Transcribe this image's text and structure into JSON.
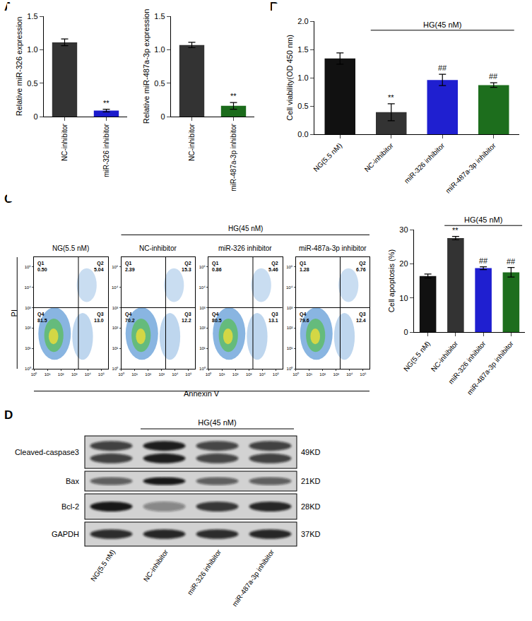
{
  "panel_labels": [
    "A",
    "B",
    "C",
    "D"
  ],
  "chart_data": [
    {
      "type": "bar",
      "categories": [
        "NC-inhibitor",
        "miR-326 inhibitor"
      ],
      "values": [
        1.11,
        0.09
      ],
      "errors": [
        0.05,
        0.02
      ],
      "colors": [
        "#333333",
        "#1a1acc"
      ],
      "ylabel": "Relative miR-326 expression",
      "ylim": [
        0,
        1.5
      ],
      "yticks": [
        0,
        0.5,
        {
          "value": 1,
          "label": "1.0"
        },
        1.5
      ],
      "grid": false,
      "significance": [
        {
          "category": "miR-326 inhibitor",
          "text": "**"
        }
      ]
    },
    {
      "type": "bar",
      "categories": [
        "NC-inhibitor",
        "miR-487a-3p inhibitor"
      ],
      "values": [
        1.07,
        0.16
      ],
      "errors": [
        0.04,
        0.05
      ],
      "colors": [
        "#333333",
        "#1b6b1b"
      ],
      "ylabel": "Relative miR-487a-3p expression",
      "ylim": [
        0,
        1.5
      ],
      "yticks": [
        0,
        0.5,
        {
          "value": 1,
          "label": "1.0"
        },
        1.5
      ],
      "grid": false,
      "significance": [
        {
          "category": "miR-487a-3p inhibitor",
          "text": "**"
        }
      ]
    },
    {
      "type": "bar",
      "categories": [
        "NG(5.5 nM)",
        "NC-inhibitor",
        "miR-326 inhibitor",
        "miR-487a-3p inhibitor"
      ],
      "values": [
        1.34,
        0.39,
        0.96,
        0.87
      ],
      "errors": [
        0.1,
        0.15,
        0.1,
        0.04
      ],
      "colors": [
        "#111111",
        "#333333",
        "#1f1fd0",
        "#1d6e1d"
      ],
      "ylabel": "Cell viability(OD 450 nm)",
      "ylim": [
        0,
        2
      ],
      "yticks": [
        {
          "value": 0,
          "label": "0.0"
        },
        0.5,
        {
          "value": 1,
          "label": "1.0"
        },
        1.5,
        {
          "value": 2,
          "label": "2.0"
        }
      ],
      "grid": false,
      "significance": [
        {
          "category": "NC-inhibitor",
          "text": "**"
        },
        {
          "category": "miR-326 inhibitor",
          "text": "##"
        },
        {
          "category": "miR-487a-3p inhibitor",
          "text": "##"
        }
      ],
      "group_label": {
        "text": "HG(45 nM)",
        "categories": [
          "NC-inhibitor",
          "miR-326 inhibitor",
          "miR-487a-3p inhibitor"
        ]
      }
    },
    {
      "type": "bar",
      "categories": [
        "NG(5.5 nM)",
        "NC-inhibitor",
        "miR-326 inhibitor",
        "miR-487a-3p inhibitor"
      ],
      "values": [
        16.4,
        27.5,
        18.7,
        17.5
      ],
      "errors": [
        0.6,
        0.5,
        0.4,
        1.4
      ],
      "colors": [
        "#111111",
        "#333333",
        "#1f1fd0",
        "#1d6e1d"
      ],
      "ylabel": "Cell apoptosis (%)",
      "ylim": [
        0,
        30
      ],
      "yticks": [
        0,
        10,
        20,
        30
      ],
      "grid": false,
      "significance": [
        {
          "category": "NC-inhibitor",
          "text": "**"
        },
        {
          "category": "miR-326 inhibitor",
          "text": "##"
        },
        {
          "category": "miR-487a-3p inhibitor",
          "text": "##"
        }
      ],
      "group_label": {
        "text": "HG(45 nM)",
        "categories": [
          "NC-inhibitor",
          "miR-326 inhibitor",
          "miR-487a-3p inhibitor"
        ]
      }
    }
  ],
  "flow_cytometry": {
    "x_label": "Annexin V",
    "y_label": "PI",
    "log": true,
    "xlim": [
      1,
      300000
    ],
    "ylim": [
      1,
      300000
    ],
    "xticks": [
      {
        "value": 1,
        "label": "10⁰"
      },
      {
        "value": 10,
        "label": "10¹"
      },
      {
        "value": 100,
        "label": "10²"
      },
      {
        "value": 1000,
        "label": "10³"
      },
      {
        "value": 10000,
        "label": "10⁴"
      },
      {
        "value": 100000,
        "label": "10⁵"
      }
    ],
    "yticks": [
      {
        "value": 1,
        "label": "10⁰"
      },
      {
        "value": 10,
        "label": "10¹"
      },
      {
        "value": 100,
        "label": "10²"
      },
      {
        "value": 1000,
        "label": "10³"
      },
      {
        "value": 10000,
        "label": "10⁴"
      },
      {
        "value": 100000,
        "label": "10⁵"
      }
    ],
    "gate": {
      "x": 2000,
      "y": 1000
    },
    "group_label": {
      "text": "HG(45 nM)",
      "plots": [
        "NC-inhibitor",
        "miR-326 inhibitor",
        "miR-487a-3p inhibitor"
      ]
    },
    "plots": [
      {
        "title": "NG(5.5 nM)",
        "quadrants": [
          {
            "name": "Q1",
            "value": 0.5,
            "label": "0.50"
          },
          {
            "name": "Q2",
            "value": 5.04,
            "label": "5.04"
          },
          {
            "name": "Q3",
            "value": 13.0,
            "label": "13.0"
          },
          {
            "name": "Q4",
            "value": 81.5,
            "label": "81.5"
          }
        ]
      },
      {
        "title": "NC-inhibitor",
        "quadrants": [
          {
            "name": "Q1",
            "value": 2.39,
            "label": "2.39"
          },
          {
            "name": "Q2",
            "value": 15.3,
            "label": "15.3"
          },
          {
            "name": "Q3",
            "value": 12.2,
            "label": "12.2"
          },
          {
            "name": "Q4",
            "value": 70.2,
            "label": "70.2"
          }
        ]
      },
      {
        "title": "miR-326 inhibitor",
        "quadrants": [
          {
            "name": "Q1",
            "value": 0.86,
            "label": "0.86"
          },
          {
            "name": "Q2",
            "value": 5.46,
            "label": "5.46"
          },
          {
            "name": "Q3",
            "value": 13.1,
            "label": "13.1"
          },
          {
            "name": "Q4",
            "value": 80.5,
            "label": "80.5"
          }
        ]
      },
      {
        "title": "miR-487a-3p inhibitor",
        "quadrants": [
          {
            "name": "Q1",
            "value": 1.28,
            "label": "1.28"
          },
          {
            "name": "Q2",
            "value": 6.76,
            "label": "6.76"
          },
          {
            "name": "Q3",
            "value": 12.4,
            "label": "12.4"
          },
          {
            "name": "Q4",
            "value": 79.6,
            "label": "79.6"
          }
        ]
      }
    ]
  },
  "western_blot": {
    "lanes": [
      "NG(5.5 nM)",
      "NC-inhibitor",
      "miR-326 inhibitor",
      "miR-487a-3p inhibitor"
    ],
    "group_label": {
      "text": "HG(45 nM)",
      "lanes": [
        "NC-inhibitor",
        "miR-326 inhibitor",
        "miR-487a-3p inhibitor"
      ]
    },
    "rows": [
      {
        "protein": "Cleaved-caspase3",
        "size": "49KD",
        "bands": 2,
        "intensity": [
          0.75,
          0.92,
          0.72,
          0.75
        ]
      },
      {
        "protein": "Bax",
        "size": "21KD",
        "bands": 1,
        "intensity": [
          0.6,
          0.95,
          0.6,
          0.6
        ]
      },
      {
        "protein": "Bcl-2",
        "size": "28KD",
        "bands": 1,
        "intensity": [
          0.95,
          0.4,
          0.8,
          0.88
        ]
      },
      {
        "protein": "GAPDH",
        "size": "37KD",
        "bands": 1,
        "intensity": [
          0.85,
          0.88,
          0.85,
          0.88
        ]
      }
    ]
  }
}
